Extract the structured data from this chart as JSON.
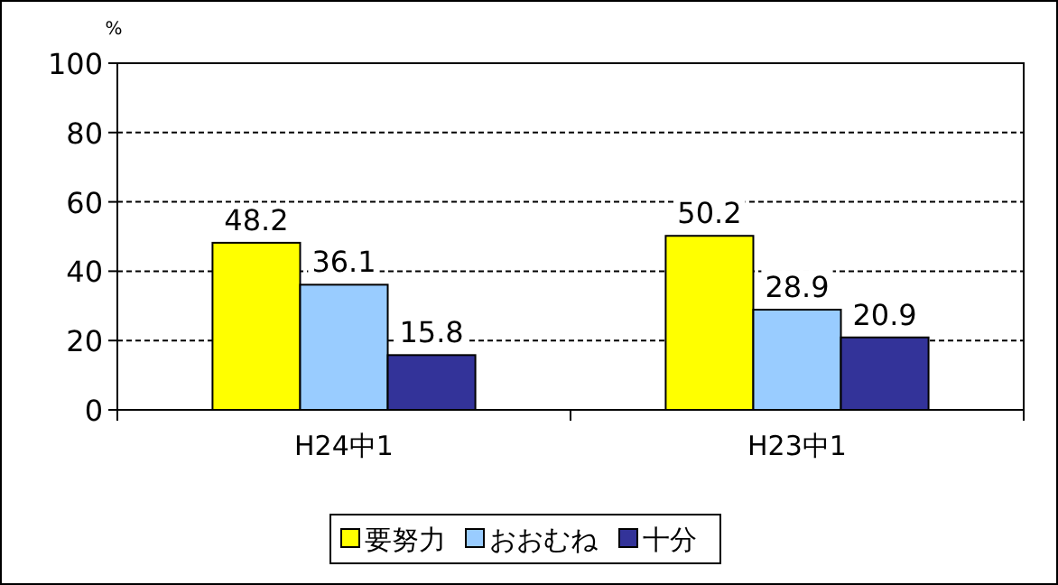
{
  "chart_data": {
    "type": "bar",
    "ylabel": "%",
    "categories": [
      "H24中1",
      "H23中1"
    ],
    "series": [
      {
        "name": "要努力",
        "color": "#ffff00",
        "values": [
          48.2,
          50.2
        ]
      },
      {
        "name": "おおむね",
        "color": "#99ccff",
        "values": [
          36.1,
          28.9
        ]
      },
      {
        "name": "十分",
        "color": "#333399",
        "values": [
          15.8,
          20.9
        ]
      }
    ],
    "ylim": [
      0,
      100
    ],
    "yticks": [
      0,
      20,
      40,
      60,
      80,
      100
    ],
    "grid": "y",
    "legend": "bottom",
    "data_labels": true
  }
}
